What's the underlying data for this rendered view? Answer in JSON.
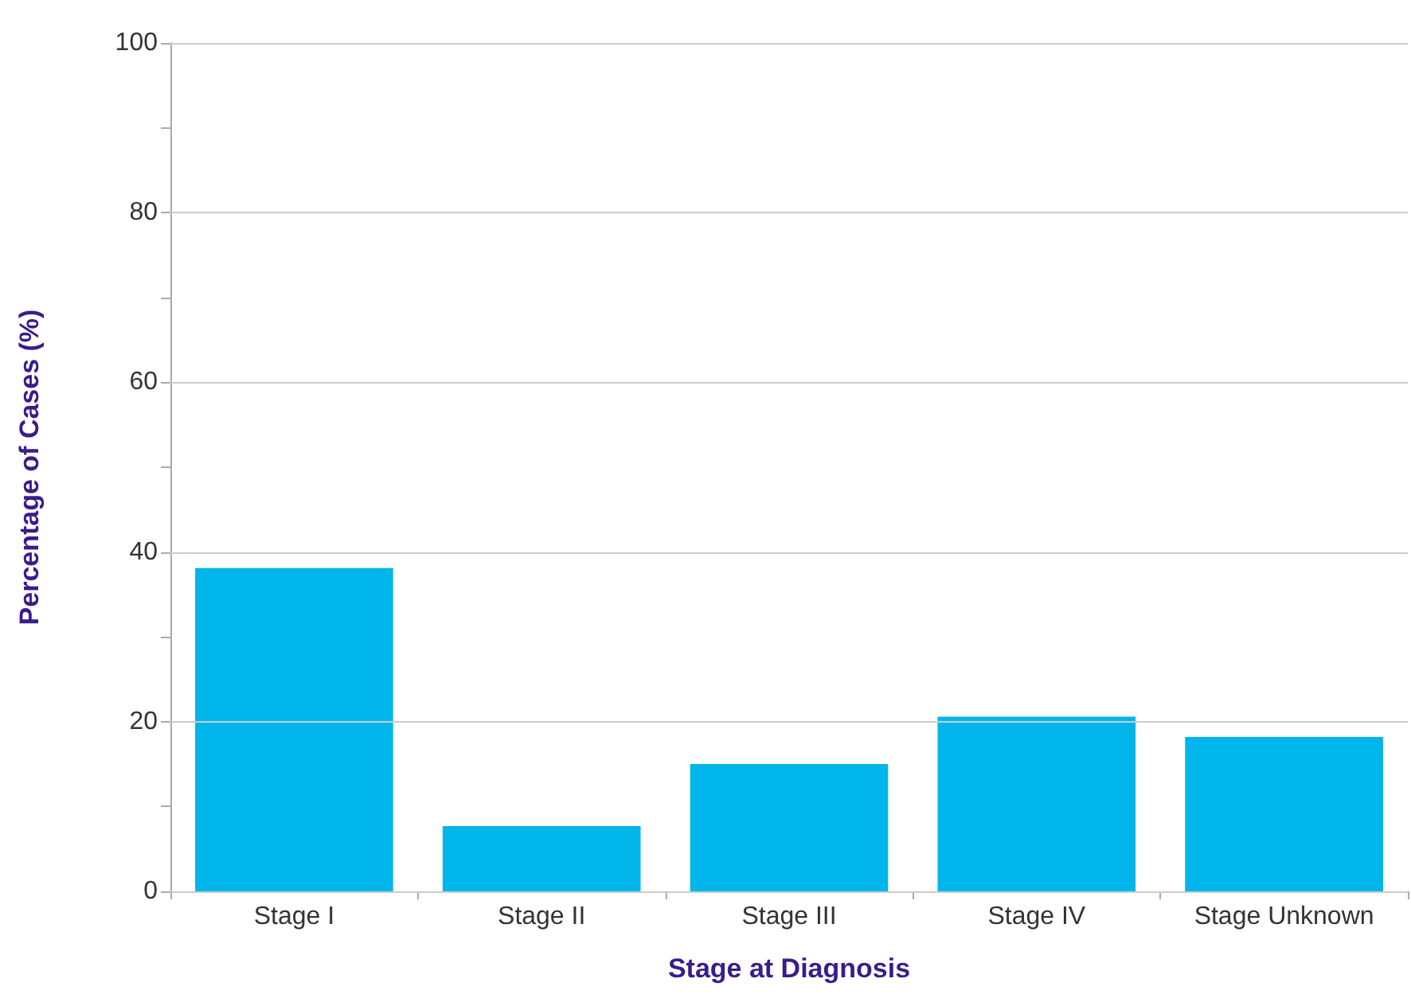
{
  "chart_data": {
    "type": "bar",
    "xlabel": "Stage at Diagnosis",
    "ylabel": "Percentage of Cases (%)",
    "categories": [
      "Stage I",
      "Stage II",
      "Stage III",
      "Stage IV",
      "Stage Unknown"
    ],
    "values": [
      38.1,
      7.7,
      15.0,
      20.6,
      18.2
    ],
    "color": "#00b5ea",
    "ylim": [
      0,
      100
    ],
    "yticks": [
      0,
      {
        "value": 10,
        "label": null
      },
      20,
      {
        "value": 30,
        "label": null
      },
      40,
      {
        "value": 50,
        "label": null
      },
      60,
      {
        "value": 70,
        "label": null
      },
      80,
      {
        "value": 90,
        "label": null
      },
      100
    ],
    "grid": "y"
  }
}
